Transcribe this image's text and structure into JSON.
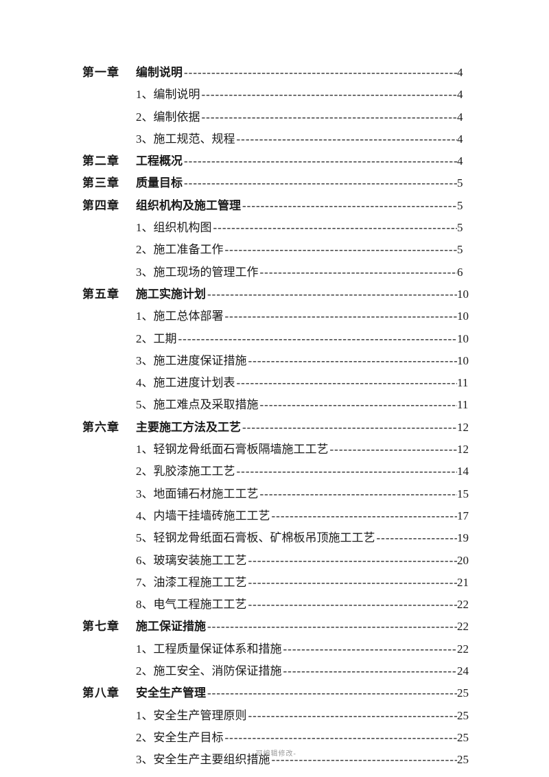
{
  "footer_text": "-可编辑修改-",
  "toc": [
    {
      "chapter": "第一章",
      "title": "编制说明",
      "page": "4",
      "bold": true,
      "trailingSpace": true
    },
    {
      "chapter": "",
      "title": "1、编制说明",
      "page": "4",
      "bold": false
    },
    {
      "chapter": "",
      "title": "2、编制依据",
      "page": "4",
      "bold": false
    },
    {
      "chapter": "",
      "title": "3、施工规范、规程",
      "page": "4",
      "bold": false
    },
    {
      "chapter": "第二章",
      "title": "工程概况",
      "page": "4",
      "bold": true
    },
    {
      "chapter": "第三章",
      "title": "质量目标",
      "page": "5",
      "bold": true
    },
    {
      "chapter": "第四章",
      "title": "组织机构及施工管理",
      "page": "5",
      "bold": true
    },
    {
      "chapter": "",
      "title": "1、组织机构图",
      "page": "5",
      "bold": false
    },
    {
      "chapter": "",
      "title": "2、施工准备工作",
      "page": "5",
      "bold": false
    },
    {
      "chapter": "",
      "title": "3、施工现场的管理工作",
      "page": "6",
      "bold": false
    },
    {
      "chapter": "第五章",
      "title": "施工实施计划",
      "page": "10",
      "bold": true
    },
    {
      "chapter": "",
      "title": "1、施工总体部署",
      "page": "10",
      "bold": false
    },
    {
      "chapter": "",
      "title": "2、工期",
      "page": "10",
      "bold": false
    },
    {
      "chapter": "",
      "title": "3、施工进度保证措施",
      "page": "10",
      "bold": false
    },
    {
      "chapter": "",
      "title": "4、施工进度计划表",
      "page": "11",
      "bold": false
    },
    {
      "chapter": "",
      "title": "5、施工难点及采取措施",
      "page": "11",
      "bold": false
    },
    {
      "chapter": "第六章",
      "title": "主要施工方法及工艺",
      "page": "12",
      "bold": true
    },
    {
      "chapter": "",
      "title": "1、轻钢龙骨纸面石膏板隔墙施工工艺",
      "page": "12",
      "bold": false
    },
    {
      "chapter": "",
      "title": "2、乳胶漆施工工艺",
      "page": "14",
      "bold": false
    },
    {
      "chapter": "",
      "title": "3、地面铺石材施工工艺",
      "page": "15",
      "bold": false
    },
    {
      "chapter": "",
      "title": "4、内墙干挂墙砖施工工艺",
      "page": "17",
      "bold": false
    },
    {
      "chapter": "",
      "title": "5、轻钢龙骨纸面石膏板、矿棉板吊顶施工工艺",
      "page": "19",
      "bold": false
    },
    {
      "chapter": "",
      "title": "6、玻璃安装施工工艺",
      "page": "20",
      "bold": false
    },
    {
      "chapter": "",
      "title": "7、油漆工程施工工艺",
      "page": "21",
      "bold": false
    },
    {
      "chapter": "",
      "title": "8、电气工程施工工艺",
      "page": "22",
      "bold": false
    },
    {
      "chapter": "第七章",
      "title": "施工保证措施",
      "page": "22",
      "bold": true
    },
    {
      "chapter": "",
      "title": "1、工程质量保证体系和措施",
      "page": "22",
      "bold": false
    },
    {
      "chapter": "",
      "title": "2、施工安全、消防保证措施",
      "page": "24",
      "bold": false
    },
    {
      "chapter": "第八章",
      "title": "安全生产管理",
      "page": "25",
      "bold": true
    },
    {
      "chapter": "",
      "title": "1、安全生产管理原则",
      "page": "25",
      "bold": false
    },
    {
      "chapter": "",
      "title": "2、安全生产目标",
      "page": "25",
      "bold": false
    },
    {
      "chapter": "",
      "title": "3、安全生产主要组织措施",
      "page": "25",
      "bold": false
    }
  ]
}
